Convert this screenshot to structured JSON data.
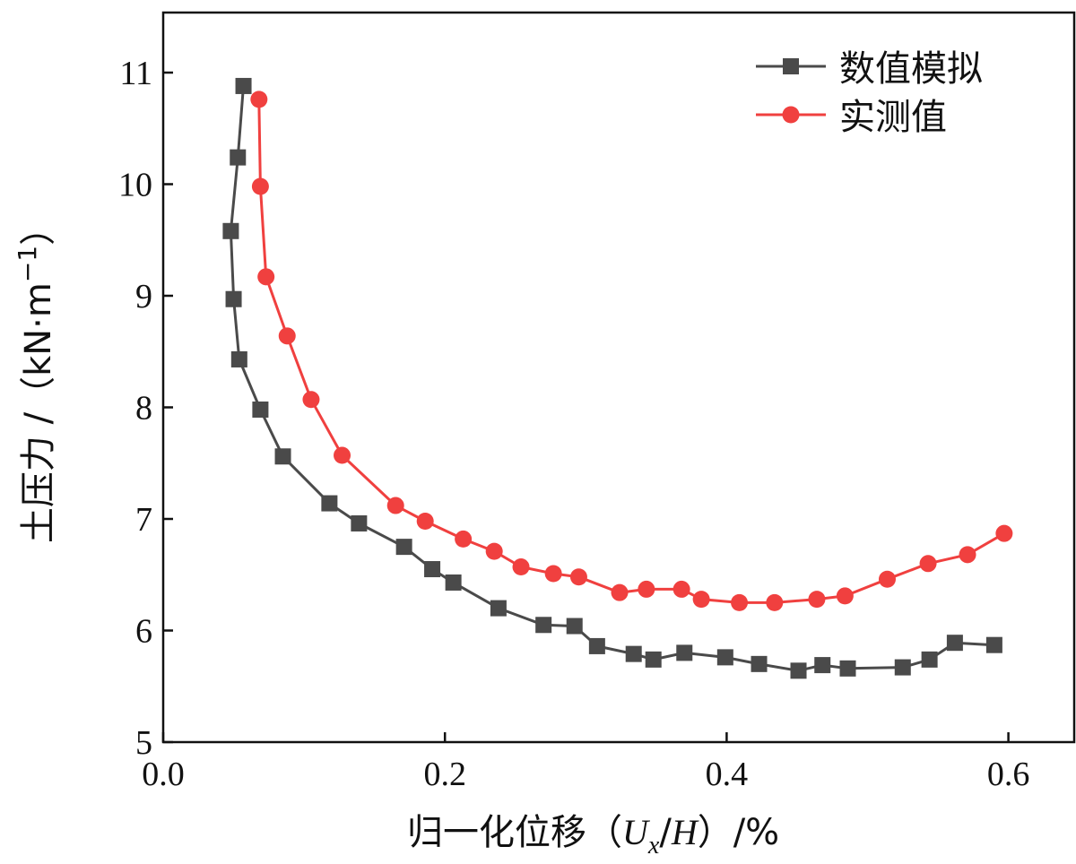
{
  "chart_data": {
    "type": "line",
    "xlabel": "归一化位移（U_x/H）/%",
    "xlabel_parts": {
      "main": "归一化位移（",
      "var": "U",
      "sub": "x",
      "slash": "/",
      "var2": "H",
      "end": "）/%"
    },
    "ylabel": "土压力 /（kN·m⁻¹）",
    "ylabel_parts": {
      "main": "土压力 /（kN·m",
      "sup": "−1",
      "end": "）"
    },
    "xlim": [
      0.0,
      0.65
    ],
    "ylim": [
      5.0,
      11.5
    ],
    "xticks": [
      0.0,
      0.2,
      0.4,
      0.6
    ],
    "xtick_labels": [
      "0.0",
      "0.2",
      "0.4",
      "0.6"
    ],
    "yticks": [
      5,
      6,
      7,
      8,
      9,
      10,
      11
    ],
    "ytick_labels": [
      "5",
      "6",
      "7",
      "8",
      "9",
      "10",
      "11"
    ],
    "grid": false,
    "legend_position": "top-right",
    "series": [
      {
        "name": "数值模拟",
        "color": "#4a4a4a",
        "marker": "square",
        "x": [
          0.057,
          0.053,
          0.048,
          0.05,
          0.054,
          0.069,
          0.085,
          0.118,
          0.139,
          0.171,
          0.191,
          0.206,
          0.238,
          0.27,
          0.292,
          0.308,
          0.334,
          0.348,
          0.37,
          0.399,
          0.423,
          0.451,
          0.468,
          0.486,
          0.525,
          0.544,
          0.562,
          0.59
        ],
        "y": [
          10.88,
          10.24,
          9.58,
          8.97,
          8.43,
          7.98,
          7.56,
          7.14,
          6.96,
          6.75,
          6.55,
          6.43,
          6.2,
          6.05,
          6.04,
          5.86,
          5.79,
          5.74,
          5.8,
          5.76,
          5.7,
          5.64,
          5.69,
          5.66,
          5.67,
          5.74,
          5.89,
          5.87
        ]
      },
      {
        "name": "实测值",
        "color": "#f0403f",
        "marker": "circle",
        "x": [
          0.068,
          0.069,
          0.073,
          0.088,
          0.105,
          0.127,
          0.165,
          0.186,
          0.213,
          0.235,
          0.254,
          0.277,
          0.295,
          0.324,
          0.343,
          0.368,
          0.382,
          0.409,
          0.434,
          0.464,
          0.484,
          0.514,
          0.543,
          0.571,
          0.597
        ],
        "y": [
          10.76,
          9.98,
          9.17,
          8.64,
          8.07,
          7.57,
          7.12,
          6.98,
          6.82,
          6.71,
          6.57,
          6.51,
          6.48,
          6.34,
          6.37,
          6.37,
          6.28,
          6.25,
          6.25,
          6.28,
          6.31,
          6.46,
          6.6,
          6.68,
          6.87
        ]
      }
    ]
  }
}
